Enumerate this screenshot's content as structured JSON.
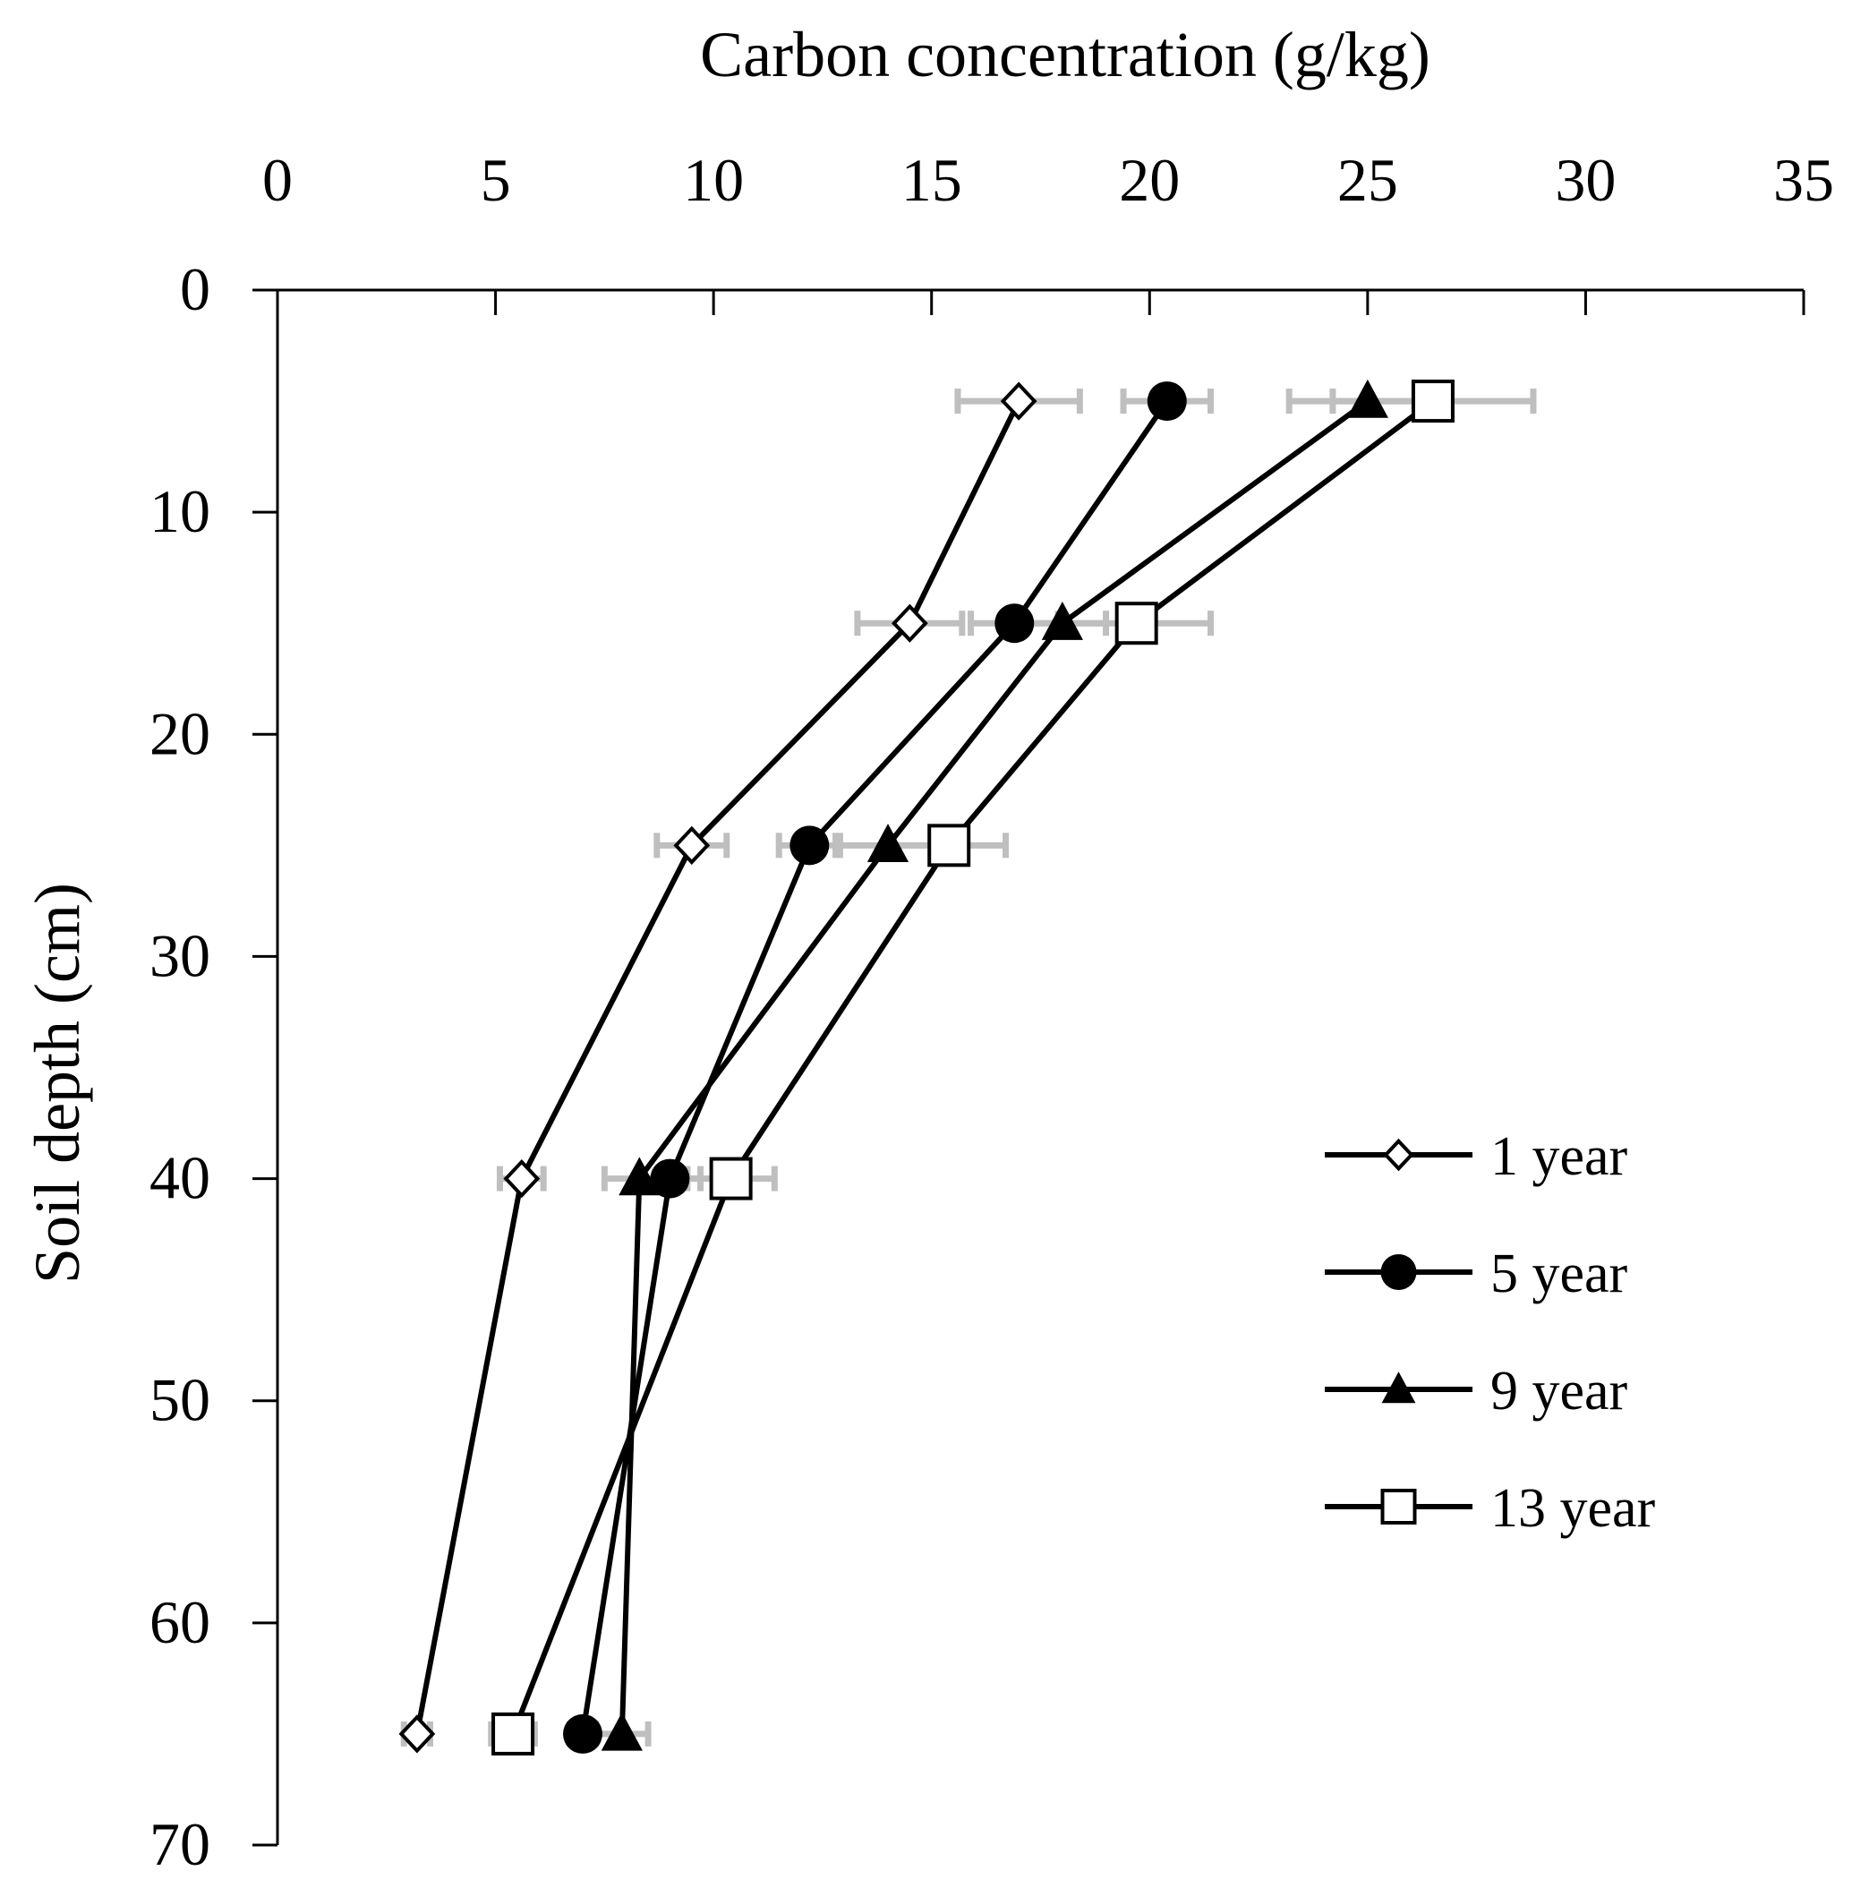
{
  "chart_data": {
    "type": "line",
    "title": "",
    "xlabel": "Carbon concentration (g/kg)",
    "ylabel": "Soil depth (cm)",
    "xlim": [
      0,
      35
    ],
    "ylim": [
      0,
      70
    ],
    "x_ticks": [
      "0",
      "5",
      "10",
      "15",
      "20",
      "25",
      "30",
      "35"
    ],
    "y_ticks": [
      "0",
      "10",
      "20",
      "30",
      "40",
      "50",
      "60",
      "70"
    ],
    "x_axis_position": "top",
    "y_axis_inverted": true,
    "grid": false,
    "legend_position": "right-middle",
    "depths": [
      5,
      15,
      25,
      40,
      65
    ],
    "series": [
      {
        "name": "1 year",
        "marker": "diamond-open",
        "values": [
          17.0,
          14.5,
          9.5,
          5.6,
          3.2
        ],
        "errors": [
          1.4,
          1.2,
          0.8,
          0.5,
          0.3
        ]
      },
      {
        "name": "5 year",
        "marker": "circle-filled",
        "values": [
          20.4,
          16.9,
          12.2,
          9.0,
          7.0
        ],
        "errors": [
          1.0,
          1.0,
          0.7,
          0.7,
          0.3
        ]
      },
      {
        "name": "9 year",
        "marker": "triangle-filled",
        "values": [
          25.0,
          18.0,
          14.0,
          8.3,
          7.9
        ],
        "errors": [
          1.8,
          1.0,
          1.2,
          0.8,
          0.6
        ]
      },
      {
        "name": "13 year",
        "marker": "square-open",
        "values": [
          26.5,
          19.7,
          15.4,
          10.4,
          5.4
        ],
        "errors": [
          2.3,
          1.7,
          1.3,
          1.0,
          0.5
        ]
      }
    ],
    "colors": {
      "line": "#000000",
      "error_bar": "#bfbfbf",
      "open_fill": "#ffffff"
    }
  }
}
